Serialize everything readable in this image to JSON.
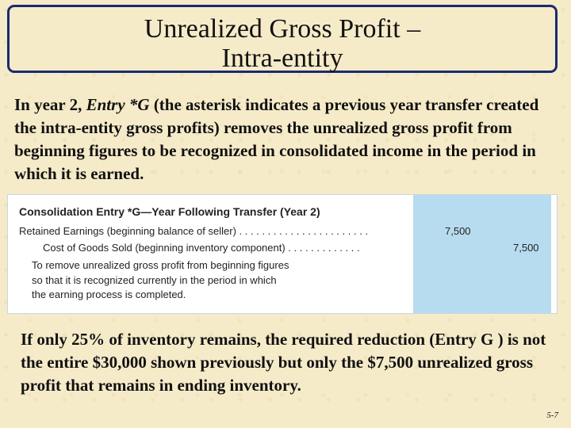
{
  "title": {
    "line1": "Unrealized Gross Profit –",
    "line2": "Intra-entity"
  },
  "intro": {
    "part1": "In year 2, ",
    "entry": "Entry *G",
    "part2": " (the asterisk indicates a previous year transfer created the intra-entity gross profits) removes the unrealized gross profit from beginning figures to be recognized in consolidated income in the period in which it is earned."
  },
  "entry_panel": {
    "title": "Consolidation Entry *G—Year Following Transfer (Year 2)",
    "debit_line": "Retained Earnings (beginning balance of seller) . . . . . . . . . . . . . . . . . . . . . . .",
    "debit_amount": "7,500",
    "credit_line": "Cost of Goods Sold (beginning inventory component) . . . . . . . . . . . . .",
    "credit_amount": "7,500",
    "explanation": [
      "To remove unrealized gross profit from beginning figures",
      "so that it is recognized currently in the period in which",
      "the earning process is completed."
    ]
  },
  "outro": "If only 25% of inventory remains, the required reduction (Entry G ) is not the entire $30,000 shown previously but only the $7,500 unrealized gross profit that remains in ending inventory.",
  "slide_number": "5-7"
}
